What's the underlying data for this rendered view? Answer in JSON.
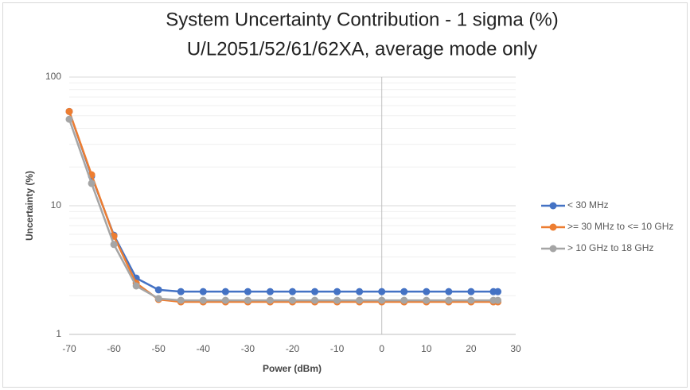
{
  "chart_data": {
    "type": "line",
    "title": "System Uncertainty Contribution - 1 sigma (%)",
    "subtitle": "U/L2051/52/61/62XA, average mode only",
    "x_label": "Power (dBm)",
    "y_label": "Uncertainty (%)",
    "x": [
      -70,
      -65,
      -60,
      -55,
      -50,
      -45,
      -40,
      -35,
      -30,
      -25,
      -20,
      -15,
      -10,
      -5,
      0,
      5,
      10,
      15,
      20,
      25,
      26
    ],
    "series": [
      {
        "name": "< 30 MHz",
        "color": "#4472c4",
        "values": [
          54,
          17,
          5.9,
          2.74,
          2.22,
          2.15,
          2.15,
          2.15,
          2.15,
          2.15,
          2.15,
          2.15,
          2.15,
          2.15,
          2.15,
          2.15,
          2.15,
          2.15,
          2.15,
          2.15,
          2.15
        ]
      },
      {
        "name": ">= 30 MHz to <= 10 GHz",
        "color": "#ed7d31",
        "values": [
          54,
          17.4,
          5.8,
          2.5,
          1.87,
          1.79,
          1.79,
          1.79,
          1.79,
          1.79,
          1.79,
          1.79,
          1.79,
          1.79,
          1.79,
          1.79,
          1.79,
          1.79,
          1.79,
          1.79,
          1.79
        ]
      },
      {
        "name": "> 10 GHz to 18 GHz",
        "color": "#a5a5a5",
        "values": [
          47,
          14.9,
          5.0,
          2.38,
          1.9,
          1.84,
          1.84,
          1.84,
          1.84,
          1.84,
          1.84,
          1.84,
          1.84,
          1.84,
          1.84,
          1.84,
          1.84,
          1.84,
          1.84,
          1.84,
          1.84
        ]
      }
    ],
    "xlim": [
      -70,
      30
    ],
    "xticks": [
      -70,
      -60,
      -50,
      -40,
      -30,
      -20,
      -10,
      0,
      10,
      20,
      30
    ],
    "ylim": [
      1,
      100
    ],
    "yticks": [
      1,
      10,
      100
    ],
    "log_y": true,
    "grid": true,
    "minor_grid": true,
    "yaxis_cross": 0,
    "legend": "right"
  }
}
